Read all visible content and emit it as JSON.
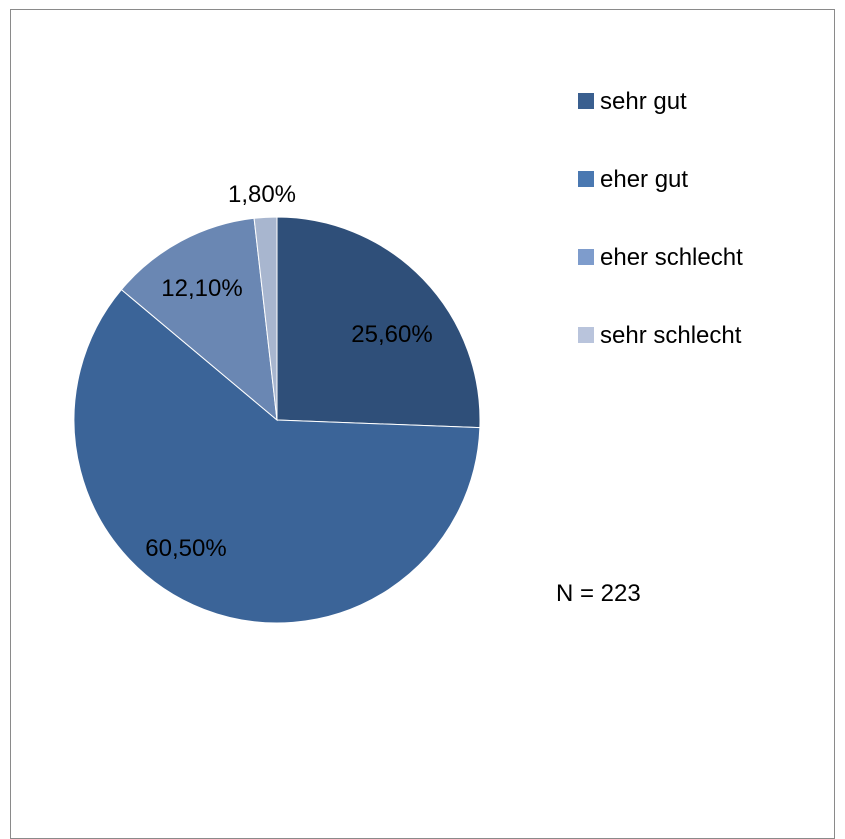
{
  "chart_data": {
    "type": "pie",
    "categories": [
      "sehr gut",
      "eher gut",
      "eher schlecht",
      "sehr schlecht"
    ],
    "values": [
      25.6,
      60.5,
      12.1,
      1.8
    ],
    "data_labels": [
      "25,60%",
      "60,50%",
      "12,10%",
      "1,80%"
    ],
    "colors": [
      "#2f4f79",
      "#3b6498",
      "#6a87b3",
      "#a8b6cf"
    ],
    "legend_colors": [
      "#3a5f8f",
      "#4a78b1",
      "#7e9ccc",
      "#b9c4dc"
    ],
    "legend_position": "right",
    "start_angle": "12 o'clock, clockwise",
    "note": "N = 223"
  }
}
